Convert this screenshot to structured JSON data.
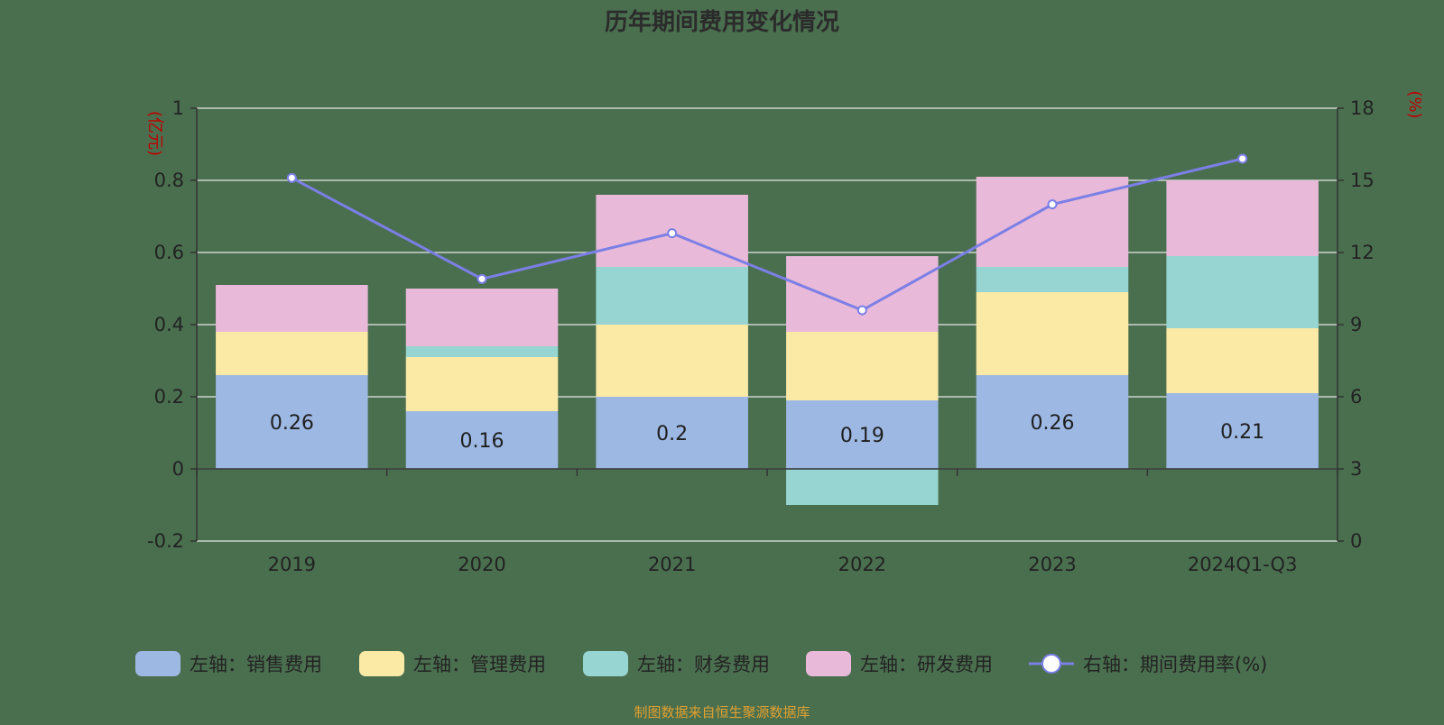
{
  "chart_data": {
    "type": "bar",
    "stacked": true,
    "title": "历年期间费用变化情况",
    "categories": [
      "2019",
      "2020",
      "2021",
      "2022",
      "2023",
      "2024Q1-Q3"
    ],
    "left_axis": {
      "unit_label": "(亿元)",
      "ylim": [
        -0.2,
        1
      ],
      "ticks": [
        -0.2,
        0,
        0.2,
        0.4,
        0.6,
        0.8,
        1
      ],
      "tick_labels": [
        "-0.2",
        "0",
        "0.2",
        "0.4",
        "0.6",
        "0.8",
        "1"
      ]
    },
    "right_axis": {
      "unit_label": "(%)",
      "ylim": [
        0,
        18
      ],
      "ticks": [
        0,
        3,
        6,
        9,
        12,
        15,
        18
      ],
      "tick_labels": [
        "0",
        "3",
        "6",
        "9",
        "12",
        "15",
        "18"
      ]
    },
    "series": [
      {
        "name": "左轴：销售费用",
        "axis": "left",
        "color": "#9db8e3",
        "values": [
          0.26,
          0.16,
          0.2,
          0.19,
          0.26,
          0.21
        ],
        "labels": [
          "0.26",
          "0.16",
          "0.2",
          "0.19",
          "0.26",
          "0.21"
        ]
      },
      {
        "name": "左轴：管理费用",
        "axis": "left",
        "color": "#fbe9a6",
        "values": [
          0.12,
          0.15,
          0.2,
          0.19,
          0.23,
          0.18
        ]
      },
      {
        "name": "左轴：财务费用",
        "axis": "left",
        "color": "#96d5d1",
        "values": [
          0.0,
          0.03,
          0.16,
          -0.1,
          0.07,
          0.2
        ]
      },
      {
        "name": "左轴：研发费用",
        "axis": "left",
        "color": "#e8b9d9",
        "values": [
          0.13,
          0.16,
          0.2,
          0.21,
          0.25,
          0.21
        ]
      }
    ],
    "line_series": {
      "name": "右轴：期间费用率(%)",
      "axis": "right",
      "color": "#7b7fe6",
      "values": [
        15.1,
        10.9,
        12.8,
        9.6,
        14.0,
        15.9
      ]
    },
    "legend_position": "bottom",
    "source_note": "制图数据来自恒生聚源数据库"
  }
}
